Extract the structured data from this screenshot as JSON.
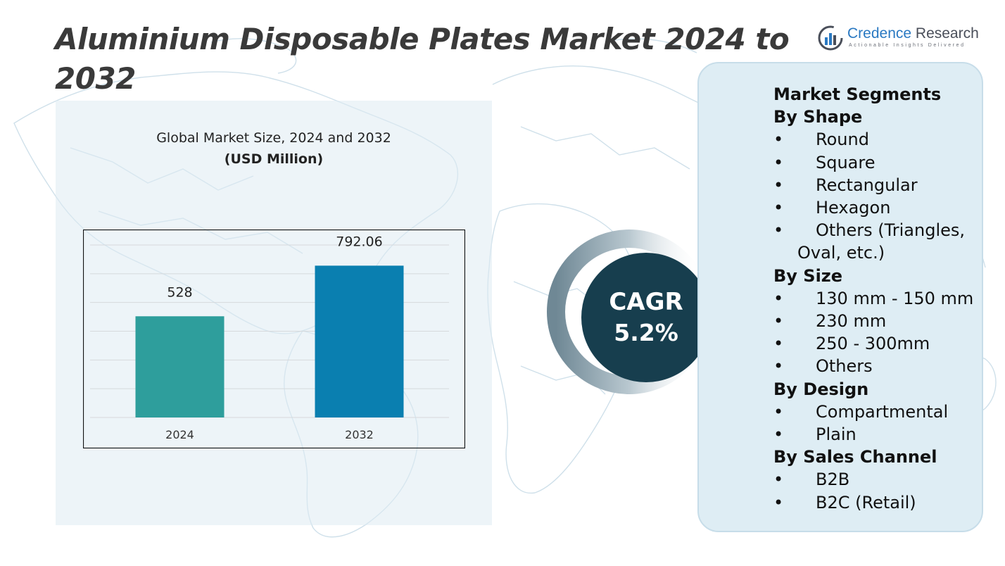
{
  "title": "Aluminium Disposable Plates Market 2024 to 2032",
  "logo": {
    "name_part1": "Credence",
    "name_part2": " Research",
    "tagline": "Actionable Insights Delivered"
  },
  "chart_data": {
    "type": "bar",
    "title": "Global Market Size, 2024 and 2032",
    "subtitle": "(USD Million)",
    "categories": [
      "2024",
      "2032"
    ],
    "values": [
      528,
      792.06
    ],
    "value_labels": [
      "528",
      "792.06"
    ],
    "bar_colors": [
      "#2e9e9c",
      "#0a7fb0"
    ],
    "ylim": [
      0,
      900
    ],
    "grid": true,
    "xlabel": "",
    "ylabel": ""
  },
  "cagr": {
    "label": "CAGR",
    "value": "5.2%"
  },
  "segments": {
    "heading": "Market Segments",
    "groups": [
      {
        "title": "By Shape",
        "items": [
          "Round",
          "Square",
          "Rectangular",
          "Hexagon",
          "Others (Triangles, Oval, etc.)"
        ]
      },
      {
        "title": "By Size",
        "items": [
          "130 mm - 150 mm",
          "230 mm",
          "250 - 300mm",
          "Others"
        ]
      },
      {
        "title": "By Design",
        "items": [
          "Compartmental",
          "Plain"
        ]
      },
      {
        "title": "By Sales Channel",
        "items": [
          "B2B",
          "B2C (Retail)"
        ]
      }
    ]
  },
  "colors": {
    "title": "#3a3a3a",
    "cagr_circle": "#173e4e",
    "segment_panel": "#deedf4",
    "map_lines": "#c9dce7"
  }
}
